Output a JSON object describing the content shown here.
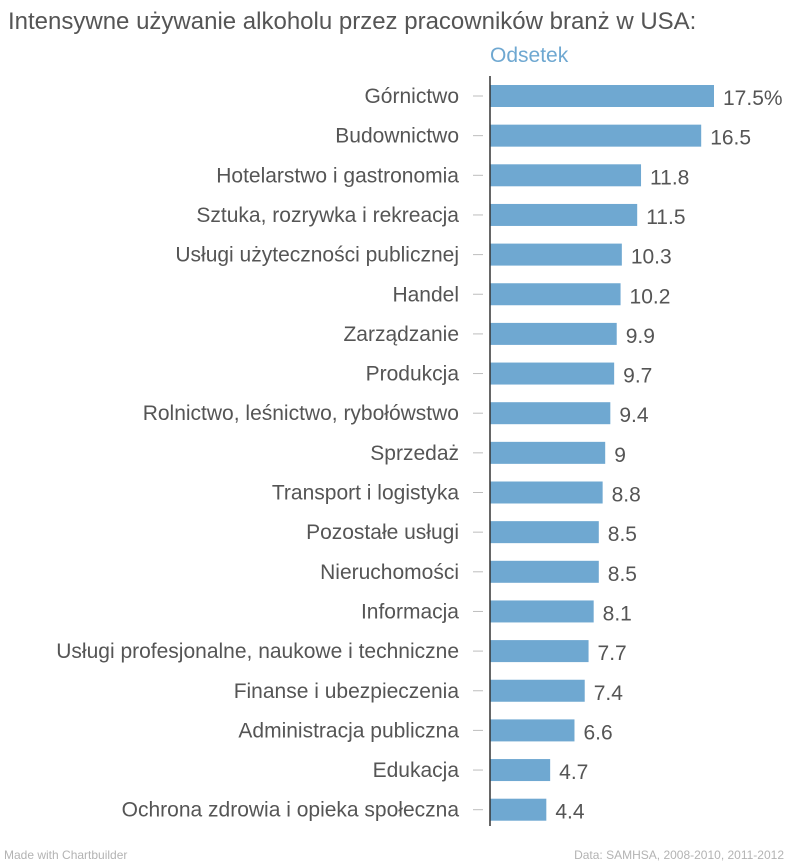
{
  "chart_data": {
    "type": "bar",
    "orientation": "horizontal",
    "title": "Intensywne używanie alkoholu przez pracowników branż w USA:",
    "series": [
      {
        "name": "Odsetek",
        "color": "#6fa8d1",
        "values": [
          17.5,
          16.5,
          11.8,
          11.5,
          10.3,
          10.2,
          9.9,
          9.7,
          9.4,
          9,
          8.8,
          8.5,
          8.5,
          8.1,
          7.7,
          7.4,
          6.6,
          4.7,
          4.4
        ]
      }
    ],
    "categories": [
      "Górnictwo",
      "Budownictwo",
      "Hotelarstwo i gastronomia",
      "Sztuka, rozrywka i rekreacja",
      "Usługi użyteczności publicznej",
      "Handel",
      "Zarządzanie",
      "Produkcja",
      "Rolnictwo, leśnictwo, rybołówstwo",
      "Sprzedaż",
      "Transport i logistyka",
      "Pozostałe usługi",
      "Nieruchomości",
      "Informacja",
      "Usługi profesjonalne, naukowe i techniczne",
      "Finanse i ubezpieczenia",
      "Administracja publiczna",
      "Edukacja",
      "Ochrona zdrowia i opieka społeczna"
    ],
    "value_labels": [
      "17.5%",
      "16.5",
      "11.8",
      "11.5",
      "10.3",
      "10.2",
      "9.9",
      "9.7",
      "9.4",
      "9",
      "8.8",
      "8.5",
      "8.5",
      "8.1",
      "7.7",
      "7.4",
      "6.6",
      "4.7",
      "4.4"
    ],
    "xlim": [
      0,
      17.5
    ],
    "grid": false,
    "legend": "top"
  },
  "footer": {
    "left": "Made with Chartbuilder",
    "right": "Data: SAMHSA, 2008-2010, 2011-2012"
  }
}
